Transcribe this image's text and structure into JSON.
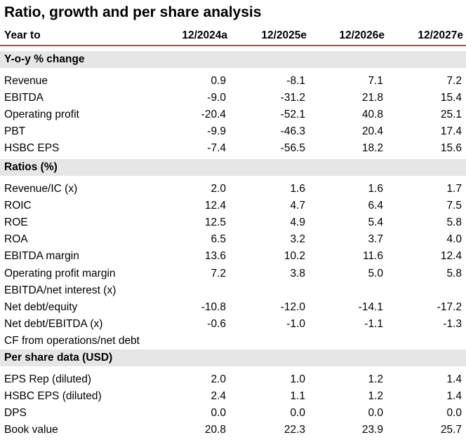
{
  "title": "Ratio, growth and per share analysis",
  "header": {
    "label": "Year to",
    "cols": [
      "12/2024a",
      "12/2025e",
      "12/2026e",
      "12/2027e"
    ]
  },
  "sections": [
    {
      "name": "Y-o-y % change",
      "rows": [
        {
          "label": "Revenue",
          "values": [
            "0.9",
            "-8.1",
            "7.1",
            "7.2"
          ]
        },
        {
          "label": "EBITDA",
          "values": [
            "-9.0",
            "-31.2",
            "21.8",
            "15.4"
          ]
        },
        {
          "label": "Operating profit",
          "values": [
            "-20.4",
            "-52.1",
            "40.8",
            "25.1"
          ]
        },
        {
          "label": "PBT",
          "values": [
            "-9.9",
            "-46.3",
            "20.4",
            "17.4"
          ]
        },
        {
          "label": "HSBC EPS",
          "values": [
            "-7.4",
            "-56.5",
            "18.2",
            "15.6"
          ]
        }
      ]
    },
    {
      "name": "Ratios (%)",
      "rows": [
        {
          "label": "Revenue/IC (x)",
          "values": [
            "2.0",
            "1.6",
            "1.6",
            "1.7"
          ]
        },
        {
          "label": "ROIC",
          "values": [
            "12.4",
            "4.7",
            "6.4",
            "7.5"
          ]
        },
        {
          "label": "ROE",
          "values": [
            "12.5",
            "4.9",
            "5.4",
            "5.8"
          ]
        },
        {
          "label": "ROA",
          "values": [
            "6.5",
            "3.2",
            "3.7",
            "4.0"
          ]
        },
        {
          "label": "EBITDA margin",
          "values": [
            "13.6",
            "10.2",
            "11.6",
            "12.4"
          ]
        },
        {
          "label": "Operating profit margin",
          "values": [
            "7.2",
            "3.8",
            "5.0",
            "5.8"
          ]
        },
        {
          "label": "EBITDA/net interest (x)",
          "values": [
            "",
            "",
            "",
            ""
          ]
        },
        {
          "label": "Net debt/equity",
          "values": [
            "-10.8",
            "-12.0",
            "-14.1",
            "-17.2"
          ]
        },
        {
          "label": "Net debt/EBITDA (x)",
          "values": [
            "-0.6",
            "-1.0",
            "-1.1",
            "-1.3"
          ]
        },
        {
          "label": "CF from operations/net debt",
          "values": [
            "",
            "",
            "",
            ""
          ]
        }
      ]
    },
    {
      "name": "Per share data  (USD)",
      "rows": [
        {
          "label": "EPS Rep (diluted)",
          "values": [
            "2.0",
            "1.0",
            "1.2",
            "1.4"
          ]
        },
        {
          "label": "HSBC EPS (diluted)",
          "values": [
            "2.4",
            "1.1",
            "1.2",
            "1.4"
          ]
        },
        {
          "label": "DPS",
          "values": [
            "0.0",
            "0.0",
            "0.0",
            "0.0"
          ]
        },
        {
          "label": "Book value",
          "values": [
            "20.8",
            "22.3",
            "23.9",
            "25.7"
          ]
        }
      ]
    }
  ]
}
